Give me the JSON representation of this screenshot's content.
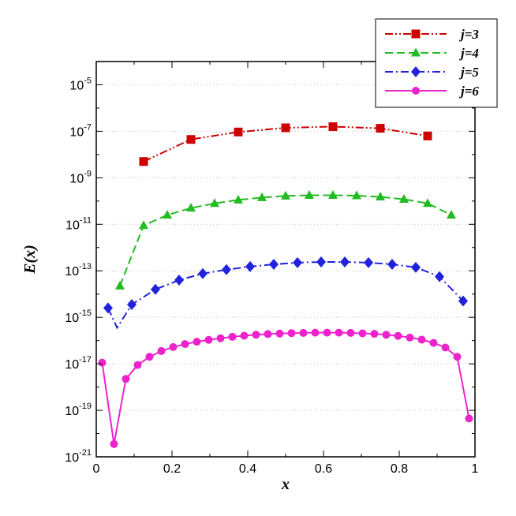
{
  "chart_data": {
    "type": "line",
    "xlabel": "x",
    "ylabel": "E(x)",
    "xlim": [
      0,
      1
    ],
    "ylim_log10": [
      -21,
      -4
    ],
    "y_scale": "log",
    "grid": "horizontal dotted",
    "legend_placement": "top-right",
    "x_ticks": [
      "0",
      "0.2",
      "0.4",
      "0.6",
      "0.8",
      "1"
    ],
    "x_tick_values": [
      0,
      0.2,
      0.4,
      0.6,
      0.8,
      1
    ],
    "y_ticks": [
      {
        "base": "10",
        "exp": "-5",
        "log": -5
      },
      {
        "base": "10",
        "exp": "-7",
        "log": -7
      },
      {
        "base": "10",
        "exp": "-9",
        "log": -9
      },
      {
        "base": "10",
        "exp": "-11",
        "log": -11
      },
      {
        "base": "10",
        "exp": "-13",
        "log": -13
      },
      {
        "base": "10",
        "exp": "-15",
        "log": -15
      },
      {
        "base": "10",
        "exp": "-17",
        "log": -17
      },
      {
        "base": "10",
        "exp": "-19",
        "log": -19
      },
      {
        "base": "10",
        "exp": "-21",
        "log": -21
      }
    ],
    "series": [
      {
        "name": "j=3",
        "color": "#cc0000",
        "dash": "dash-dot-dot",
        "marker": "square",
        "x": [
          0.125,
          0.25,
          0.375,
          0.5,
          0.625,
          0.75,
          0.875
        ],
        "log10_y": [
          -8.3,
          -7.35,
          -7.03,
          -6.85,
          -6.8,
          -6.87,
          -7.2
        ],
        "line": [
          [
            0.125,
            -8.3
          ],
          [
            0.25,
            -7.35
          ],
          [
            0.375,
            -7.03
          ],
          [
            0.5,
            -6.85
          ],
          [
            0.625,
            -6.8
          ],
          [
            0.75,
            -6.87
          ],
          [
            0.875,
            -7.2
          ]
        ]
      },
      {
        "name": "j=4",
        "color": "#22bb22",
        "dash": "dash",
        "marker": "triangle",
        "x": [
          0.0625,
          0.125,
          0.1875,
          0.25,
          0.3125,
          0.375,
          0.4375,
          0.5,
          0.5625,
          0.625,
          0.6875,
          0.75,
          0.8125,
          0.875,
          0.9375
        ],
        "log10_y": [
          -13.65,
          -11.05,
          -10.6,
          -10.3,
          -10.1,
          -9.95,
          -9.85,
          -9.78,
          -9.75,
          -9.75,
          -9.77,
          -9.82,
          -9.92,
          -10.1,
          -10.6
        ],
        "line": [
          [
            0.0625,
            -13.65
          ],
          [
            0.125,
            -11.05
          ],
          [
            0.1875,
            -10.6
          ],
          [
            0.25,
            -10.3
          ],
          [
            0.3125,
            -10.1
          ],
          [
            0.375,
            -9.95
          ],
          [
            0.4375,
            -9.85
          ],
          [
            0.5,
            -9.78
          ],
          [
            0.5625,
            -9.75
          ],
          [
            0.625,
            -9.75
          ],
          [
            0.6875,
            -9.77
          ],
          [
            0.75,
            -9.82
          ],
          [
            0.8125,
            -9.92
          ],
          [
            0.875,
            -10.1
          ],
          [
            0.9375,
            -10.6
          ]
        ]
      },
      {
        "name": "j=5",
        "color": "#2222dd",
        "dash": "dash-dot",
        "marker": "diamond",
        "x": [
          0.03125,
          0.09375,
          0.15625,
          0.21875,
          0.28125,
          0.34375,
          0.40625,
          0.46875,
          0.53125,
          0.59375,
          0.65625,
          0.71875,
          0.78125,
          0.84375,
          0.90625,
          0.96875
        ],
        "log10_y": [
          -14.6,
          -14.45,
          -13.8,
          -13.4,
          -13.12,
          -12.95,
          -12.82,
          -12.72,
          -12.65,
          -12.62,
          -12.62,
          -12.65,
          -12.72,
          -12.85,
          -13.25,
          -14.3
        ],
        "line": [
          [
            0.03125,
            -14.6
          ],
          [
            0.055,
            -15.45
          ],
          [
            0.09375,
            -14.45
          ],
          [
            0.15625,
            -13.8
          ],
          [
            0.21875,
            -13.4
          ],
          [
            0.28125,
            -13.12
          ],
          [
            0.34375,
            -12.95
          ],
          [
            0.40625,
            -12.82
          ],
          [
            0.46875,
            -12.72
          ],
          [
            0.53125,
            -12.65
          ],
          [
            0.59375,
            -12.62
          ],
          [
            0.65625,
            -12.62
          ],
          [
            0.71875,
            -12.65
          ],
          [
            0.78125,
            -12.72
          ],
          [
            0.84375,
            -12.85
          ],
          [
            0.90625,
            -13.25
          ],
          [
            0.96875,
            -14.3
          ]
        ]
      },
      {
        "name": "j=6",
        "color": "#ee22cc",
        "dash": "solid",
        "marker": "circle",
        "x": [
          0.015625,
          0.046875,
          0.078125,
          0.109375,
          0.140625,
          0.171875,
          0.203125,
          0.234375,
          0.265625,
          0.296875,
          0.328125,
          0.359375,
          0.390625,
          0.421875,
          0.453125,
          0.484375,
          0.515625,
          0.546875,
          0.578125,
          0.609375,
          0.640625,
          0.671875,
          0.703125,
          0.734375,
          0.765625,
          0.796875,
          0.828125,
          0.859375,
          0.890625,
          0.921875,
          0.953125,
          0.984375
        ],
        "log10_y": [
          -16.95,
          -20.45,
          -17.65,
          -17.05,
          -16.7,
          -16.45,
          -16.28,
          -16.15,
          -16.05,
          -15.97,
          -15.9,
          -15.84,
          -15.79,
          -15.75,
          -15.72,
          -15.7,
          -15.68,
          -15.67,
          -15.66,
          -15.66,
          -15.66,
          -15.67,
          -15.69,
          -15.71,
          -15.75,
          -15.8,
          -15.87,
          -15.96,
          -16.1,
          -16.3,
          -16.7,
          -19.35
        ],
        "line": [
          [
            0.015625,
            -16.95
          ],
          [
            0.046875,
            -20.45
          ],
          [
            0.078125,
            -17.65
          ],
          [
            0.109375,
            -17.05
          ],
          [
            0.140625,
            -16.7
          ],
          [
            0.171875,
            -16.45
          ],
          [
            0.203125,
            -16.28
          ],
          [
            0.234375,
            -16.15
          ],
          [
            0.265625,
            -16.05
          ],
          [
            0.296875,
            -15.97
          ],
          [
            0.328125,
            -15.9
          ],
          [
            0.359375,
            -15.84
          ],
          [
            0.390625,
            -15.79
          ],
          [
            0.421875,
            -15.75
          ],
          [
            0.453125,
            -15.72
          ],
          [
            0.484375,
            -15.7
          ],
          [
            0.515625,
            -15.68
          ],
          [
            0.546875,
            -15.67
          ],
          [
            0.578125,
            -15.66
          ],
          [
            0.609375,
            -15.66
          ],
          [
            0.640625,
            -15.66
          ],
          [
            0.671875,
            -15.67
          ],
          [
            0.703125,
            -15.69
          ],
          [
            0.734375,
            -15.71
          ],
          [
            0.765625,
            -15.75
          ],
          [
            0.796875,
            -15.8
          ],
          [
            0.828125,
            -15.87
          ],
          [
            0.859375,
            -15.96
          ],
          [
            0.890625,
            -16.1
          ],
          [
            0.921875,
            -16.3
          ],
          [
            0.953125,
            -16.7
          ],
          [
            0.984375,
            -19.35
          ]
        ]
      }
    ]
  }
}
